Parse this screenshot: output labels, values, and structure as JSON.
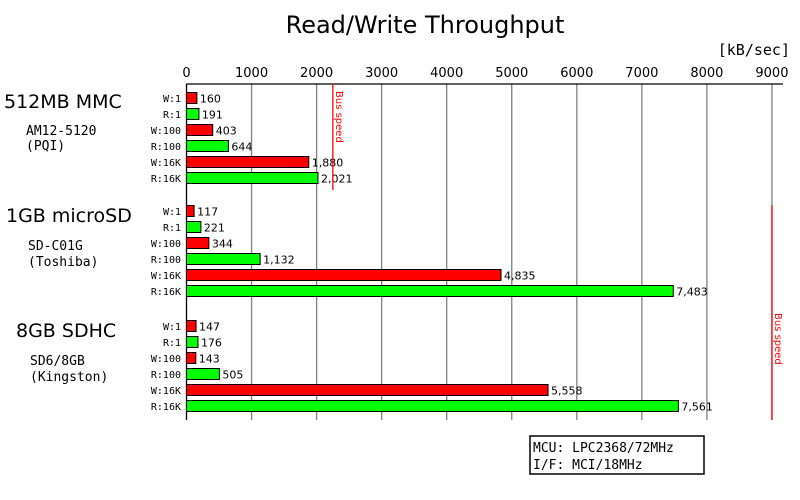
{
  "chart_data": {
    "type": "bar",
    "orientation": "horizontal",
    "title": "Read/Write Throughput",
    "unit_label": "[kB/sec]",
    "xlim": [
      0,
      9000
    ],
    "xticks": [
      0,
      1000,
      2000,
      3000,
      4000,
      5000,
      6000,
      7000,
      8000,
      9000
    ],
    "grid": true,
    "colors": {
      "write": "#ff0000",
      "read": "#00ff00",
      "bus": "#ff0000",
      "grid": "#808080"
    },
    "groups": [
      {
        "name": "512MB MMC",
        "model": "AM12-5120",
        "vendor": "(PQI)",
        "bus_label": "Bus speed",
        "bus_speed": 2250,
        "bars": [
          {
            "label": "W:1",
            "kind": "write",
            "value": 160,
            "text": "160"
          },
          {
            "label": "R:1",
            "kind": "read",
            "value": 191,
            "text": "191"
          },
          {
            "label": "W:100",
            "kind": "write",
            "value": 403,
            "text": "403"
          },
          {
            "label": "R:100",
            "kind": "read",
            "value": 644,
            "text": "644"
          },
          {
            "label": "W:16K",
            "kind": "write",
            "value": 1880,
            "text": "1,880"
          },
          {
            "label": "R:16K",
            "kind": "read",
            "value": 2021,
            "text": "2,021"
          }
        ]
      },
      {
        "name": "1GB microSD",
        "model": "SD-C01G",
        "vendor": "(Toshiba)",
        "bars": [
          {
            "label": "W:1",
            "kind": "write",
            "value": 117,
            "text": "117"
          },
          {
            "label": "R:1",
            "kind": "read",
            "value": 221,
            "text": "221"
          },
          {
            "label": "W:100",
            "kind": "write",
            "value": 344,
            "text": "344"
          },
          {
            "label": "R:100",
            "kind": "read",
            "value": 1132,
            "text": "1,132"
          },
          {
            "label": "W:16K",
            "kind": "write",
            "value": 4835,
            "text": "4,835"
          },
          {
            "label": "R:16K",
            "kind": "read",
            "value": 7483,
            "text": "7,483"
          }
        ]
      },
      {
        "name": "8GB SDHC",
        "model": "SD6/8GB",
        "vendor": "(Kingston)",
        "bars": [
          {
            "label": "W:1",
            "kind": "write",
            "value": 147,
            "text": "147"
          },
          {
            "label": "R:1",
            "kind": "read",
            "value": 176,
            "text": "176"
          },
          {
            "label": "W:100",
            "kind": "write",
            "value": 143,
            "text": "143"
          },
          {
            "label": "R:100",
            "kind": "read",
            "value": 505,
            "text": "505"
          },
          {
            "label": "W:16K",
            "kind": "write",
            "value": 5558,
            "text": "5,558"
          },
          {
            "label": "R:16K",
            "kind": "read",
            "value": 7561,
            "text": "7,561"
          }
        ]
      }
    ],
    "sd_bus": {
      "bus_label": "Bus speed",
      "bus_speed": 9000
    },
    "note": [
      "MCU: LPC2368/72MHz",
      "I/F: MCI/18MHz"
    ]
  }
}
